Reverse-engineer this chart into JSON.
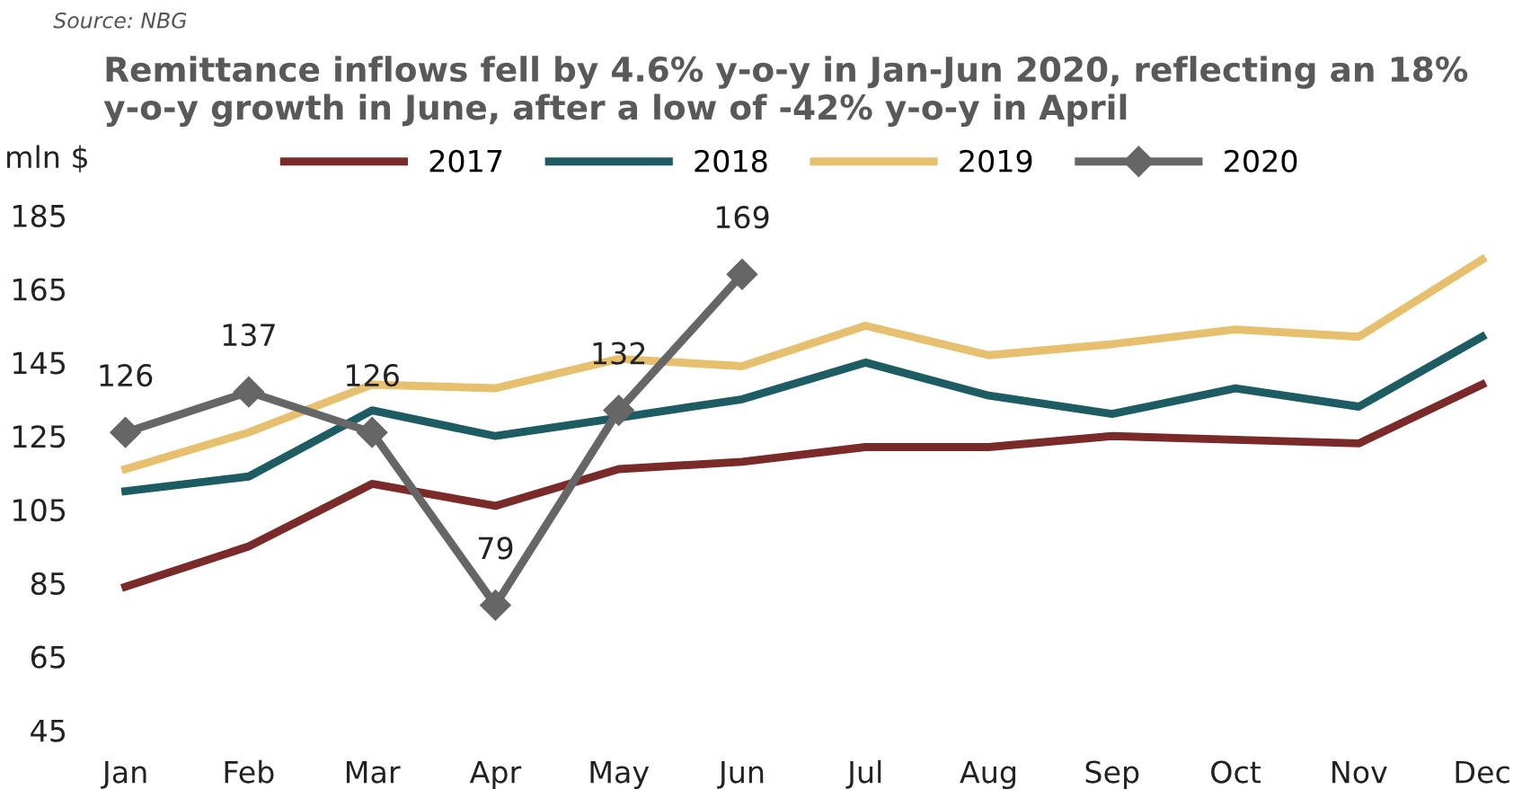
{
  "chart_data": {
    "type": "line",
    "title": "Remittance inflows fell by 4.6% y-o-y in Jan-Jun 2020, reflecting an 18% y-o-y growth in June, after a low of -42% y-o-y in April",
    "ylabel": "mln $",
    "annotations": [
      "Source: NBG"
    ],
    "categories": [
      "Jan",
      "Feb",
      "Mar",
      "Apr",
      "May",
      "Jun",
      "Jul",
      "Aug",
      "Sep",
      "Oct",
      "Nov",
      "Dec"
    ],
    "series": [
      {
        "name": "2017",
        "color": "#7b2a2a",
        "values": [
          84,
          95,
          112,
          106,
          116,
          118,
          122,
          122,
          125,
          124,
          123,
          139
        ]
      },
      {
        "name": "2018",
        "color": "#1d5c63",
        "values": [
          110,
          114,
          132,
          125,
          130,
          135,
          145,
          136,
          131,
          138,
          133,
          152
        ]
      },
      {
        "name": "2019",
        "color": "#e6c06e",
        "values": [
          116,
          126,
          139,
          138,
          146,
          144,
          155,
          147,
          150,
          154,
          152,
          173
        ]
      },
      {
        "name": "2020",
        "color": "#666666",
        "marker": "diamond",
        "values": [
          126,
          137,
          126,
          79,
          132,
          169,
          null,
          null,
          null,
          null,
          null,
          null
        ],
        "value_labels": [
          "126",
          "137",
          "126",
          "79",
          "132",
          "169",
          null,
          null,
          null,
          null,
          null,
          null
        ]
      }
    ],
    "ylim": [
      45,
      185
    ],
    "yticks": [
      45,
      65,
      85,
      105,
      125,
      145,
      165,
      185
    ],
    "grid": false,
    "legend": "top"
  }
}
